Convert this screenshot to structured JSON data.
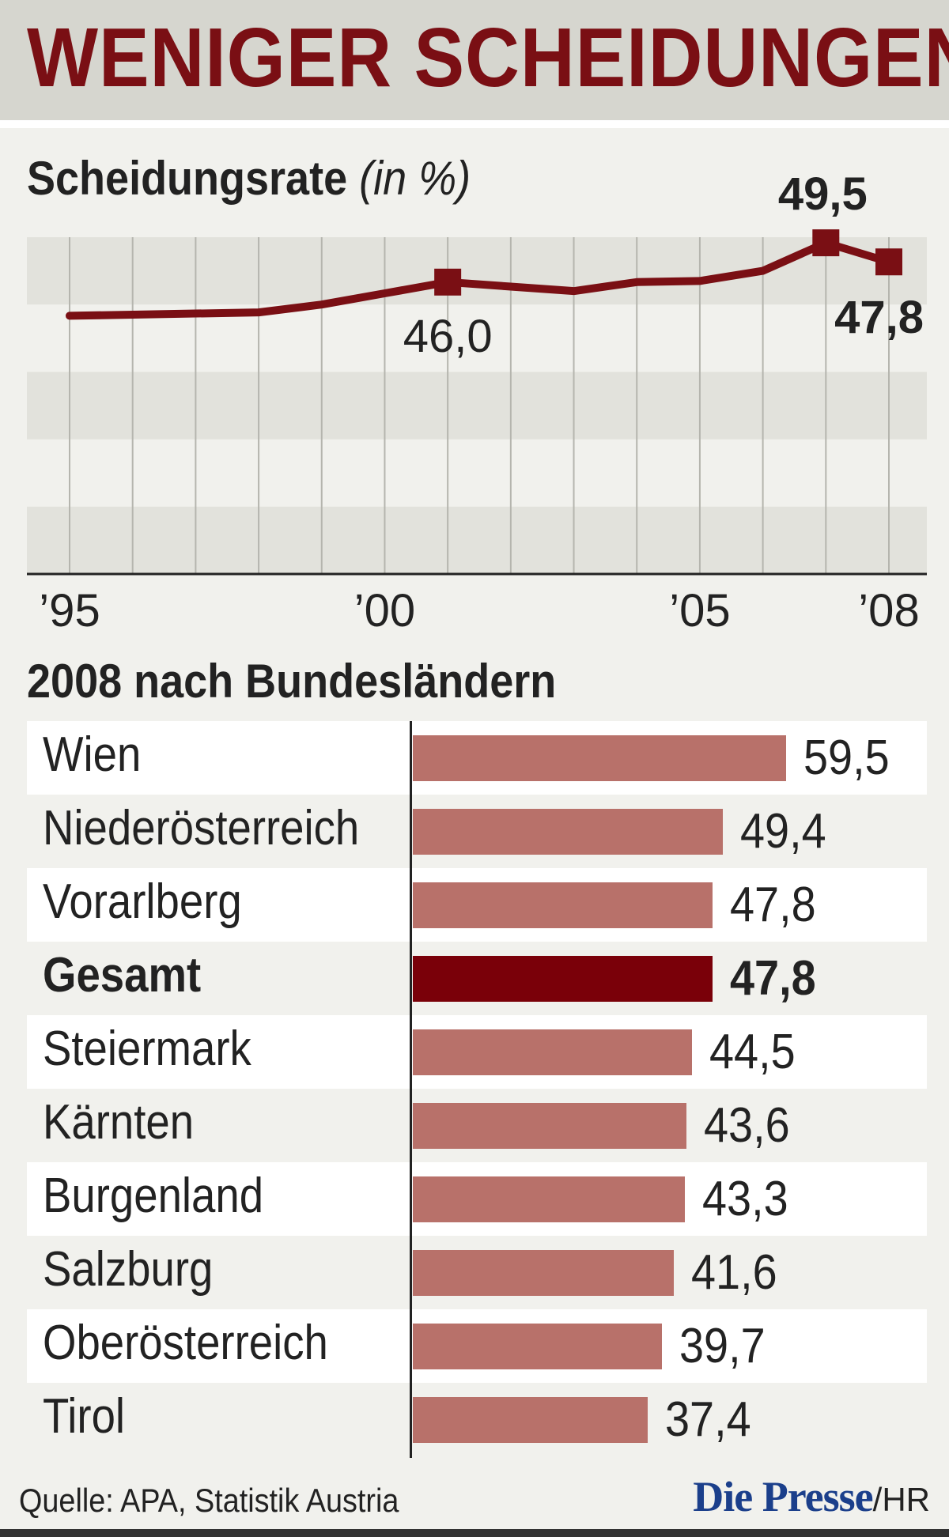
{
  "title": "WENIGER SCHEIDUNGEN",
  "chart_data": [
    {
      "type": "line",
      "title": "Scheidungsrate",
      "title_unit": "(in %)",
      "x": [
        1995,
        1996,
        1997,
        1998,
        1999,
        2000,
        2001,
        2002,
        2003,
        2004,
        2005,
        2006,
        2007,
        2008
      ],
      "x_tick_labels": [
        {
          "x": 1995,
          "label": "’95"
        },
        {
          "x": 2000,
          "label": "’00"
        },
        {
          "x": 2005,
          "label": "’05"
        },
        {
          "x": 2008,
          "label": "’08"
        }
      ],
      "series": [
        {
          "values": [
            43.0,
            43.1,
            43.2,
            43.3,
            44.0,
            45.0,
            46.0,
            45.6,
            45.2,
            46.0,
            46.1,
            47.0,
            49.5,
            47.8
          ]
        }
      ],
      "markers": [
        {
          "x": 2001,
          "value": 46.0,
          "label": "46,0"
        },
        {
          "x": 2007,
          "value": 49.5,
          "label": "49,5"
        },
        {
          "x": 2008,
          "value": 47.8,
          "label": "47,8"
        }
      ],
      "ylim": [
        20,
        50
      ],
      "grid": true,
      "line_color": "#7a0f14"
    },
    {
      "type": "bar",
      "orientation": "horizontal",
      "title": "2008 nach Bundesländern",
      "categories": [
        "Wien",
        "Niederösterreich",
        "Vorarlberg",
        "Gesamt",
        "Steiermark",
        "Kärnten",
        "Burgenland",
        "Salzburg",
        "Oberösterreich",
        "Tirol"
      ],
      "values": [
        59.5,
        49.4,
        47.8,
        47.8,
        44.5,
        43.6,
        43.3,
        41.6,
        39.7,
        37.4
      ],
      "value_labels": [
        "59,5",
        "49,4",
        "47,8",
        "47,8",
        "44,5",
        "43,6",
        "43,3",
        "41,6",
        "39,7",
        "37,4"
      ],
      "highlight": "Gesamt",
      "bar_color": "#b8716a",
      "highlight_color": "#7a0009",
      "xlim": [
        0,
        60
      ]
    }
  ],
  "footer": {
    "source": "Quelle: APA, Statistik Austria",
    "brand": "Die Presse",
    "brand_suffix": "/HR"
  }
}
